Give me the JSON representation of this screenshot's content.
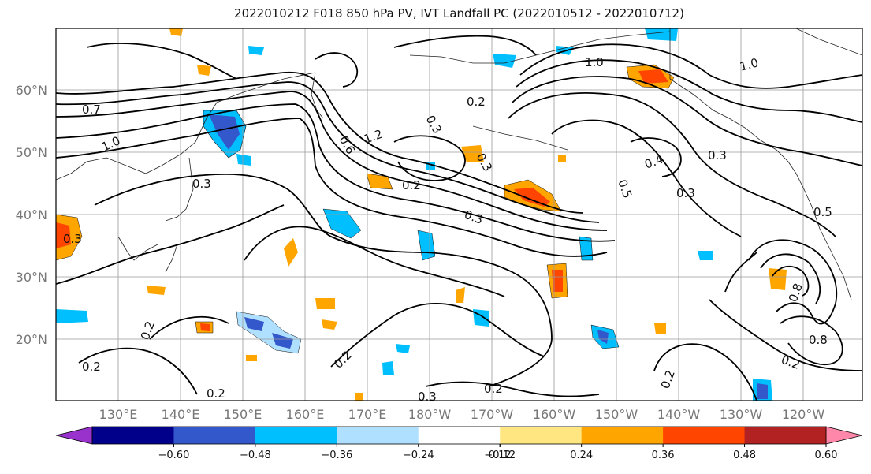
{
  "title": "2022010212 F018 850 hPa PV, IVT Landfall PC (2022010512 - 2022010712)",
  "lat_labels": [
    "60°N",
    "50°N",
    "40°N",
    "30°N",
    "20°N"
  ],
  "lon_labels": [
    "130°E",
    "140°E",
    "150°E",
    "160°E",
    "170°E",
    "180°W",
    "170°W",
    "160°W",
    "150°W",
    "140°W",
    "130°W",
    "120°W"
  ],
  "contour_labels": [
    "0.7",
    "1.0",
    "0.3",
    "0.2",
    "0.3",
    "1.2",
    "0.6",
    "0.3",
    "0.2",
    "1.0",
    "0.4",
    "0.3",
    "0.5",
    "0.3",
    "0.5",
    "0.8",
    "0.8",
    "0.2",
    "0.2",
    "0.2",
    "0.2",
    "0.2",
    "0.2",
    "0.3",
    "0.2",
    "0.3",
    "1.0",
    "0.3"
  ],
  "colorbar": {
    "ticks": [
      "−0.60",
      "−0.48",
      "−0.36",
      "−0.24",
      "−0.12",
      "0.12",
      "0.24",
      "0.36",
      "0.48",
      "0.60"
    ],
    "colors": [
      "#9932cc",
      "#00008b",
      "#3358cc",
      "#00bfff",
      "#b0e0ff",
      "#ffffff",
      "#ffe680",
      "#ffa500",
      "#ff4500",
      "#b22222",
      "#ff88aa"
    ]
  }
}
